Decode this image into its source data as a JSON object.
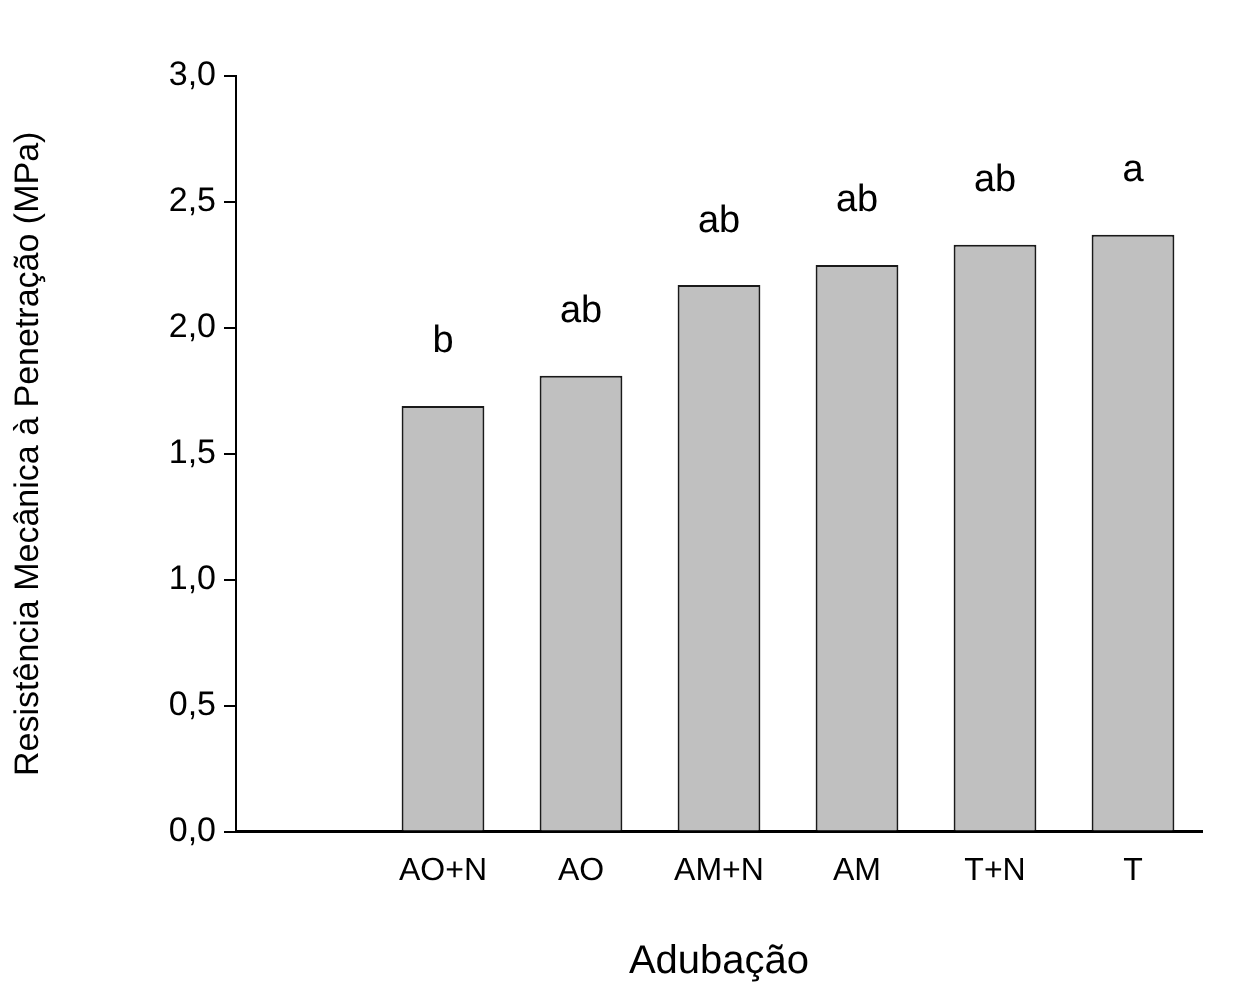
{
  "chart_data": {
    "type": "bar",
    "xlabel": "Adubação",
    "ylabel": "Resistência Mecânica à Penetração (MPa)",
    "categories": [
      "AO+N",
      "AO",
      "AM+N",
      "AM",
      "T+N",
      "T"
    ],
    "values": [
      1.69,
      1.81,
      2.17,
      2.25,
      2.33,
      2.37
    ],
    "color": "#c0c0c0",
    "ylim": [
      0,
      3
    ],
    "yticks": [
      {
        "value": 0,
        "label": "0,0"
      },
      {
        "value": 0.5,
        "label": "0,5"
      },
      {
        "value": 1,
        "label": "1,0"
      },
      {
        "value": 1.5,
        "label": "1,5"
      },
      {
        "value": 2,
        "label": "2,0"
      },
      {
        "value": 2.5,
        "label": "2,5"
      },
      {
        "value": 3,
        "label": "3,0"
      }
    ],
    "grid": false,
    "legend": false,
    "annotations": [
      {
        "text": "b",
        "x": "AO+N",
        "y": 1.69
      },
      {
        "text": "ab",
        "x": "AO",
        "y": 1.81
      },
      {
        "text": "ab",
        "x": "AM+N",
        "y": 2.17
      },
      {
        "text": "ab",
        "x": "AM",
        "y": 2.25
      },
      {
        "text": "ab",
        "x": "T+N",
        "y": 2.33
      },
      {
        "text": "a",
        "x": "T",
        "y": 2.37
      }
    ]
  }
}
